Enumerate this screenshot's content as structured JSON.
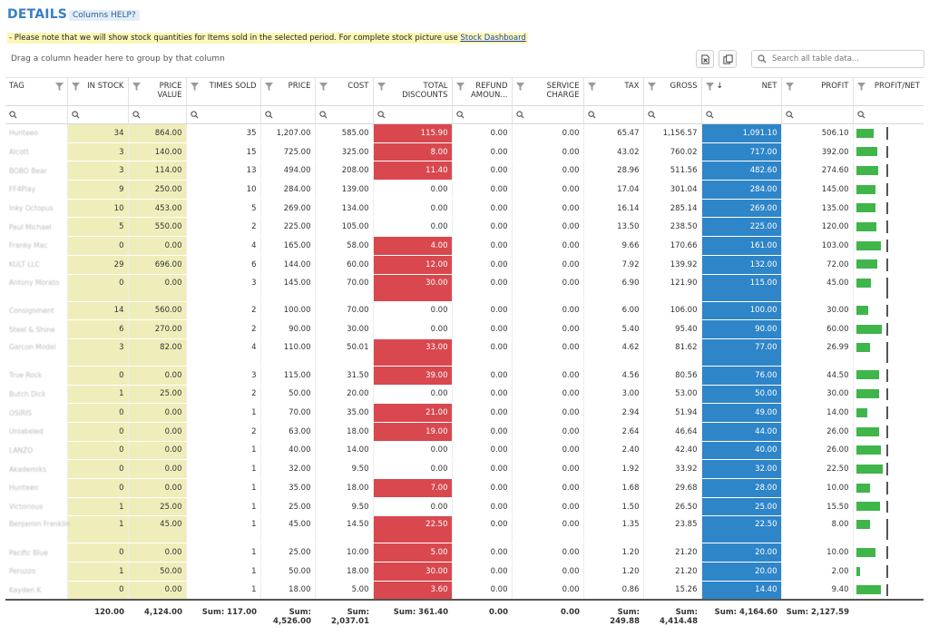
{
  "header": {
    "title": "DETAILS",
    "help_label": "Columns HELP?"
  },
  "notice": {
    "text": "- Please note that we will show stock quantities for Items sold in the selected period. For complete stock picture use ",
    "link": "Stock Dashboard"
  },
  "group_hint": "Drag a column header here to group by that column",
  "search": {
    "placeholder": "Search all table data..."
  },
  "toolbar": {
    "export_icon": "excel-export-icon",
    "copy_icon": "copy-columns-icon"
  },
  "colors": {
    "stock": "#efeebb",
    "discount": "#d8484e",
    "net": "#2e85c8",
    "profit_bar": "#3fb54a",
    "title": "#3a7fc4"
  },
  "columns": [
    "TAG",
    "IN STOCK",
    "PRICE VALUE",
    "TIMES SOLD",
    "PRICE",
    "COST",
    "TOTAL DISCOUNTS",
    "REFUND AMOUN...",
    "SERVICE CHARGE",
    "TAX",
    "GROSS",
    "NET",
    "PROFIT",
    "PROFIT/NET"
  ],
  "net_sort": "descending",
  "rows": [
    {
      "tag": "Hunteeo",
      "in_stock": "34",
      "price_value": "864.00",
      "times_sold": "35",
      "price": "1,207.00",
      "cost": "585.00",
      "total_discounts": "115.90",
      "refund": "0.00",
      "service_charge": "0.00",
      "tax": "65.47",
      "gross": "1,156.57",
      "net": "1,091.10",
      "profit": "506.10",
      "profit_net": 0.46
    },
    {
      "tag": "Alcott",
      "in_stock": "3",
      "price_value": "140.00",
      "times_sold": "15",
      "price": "725.00",
      "cost": "325.00",
      "total_discounts": "8.00",
      "refund": "0.00",
      "service_charge": "0.00",
      "tax": "43.02",
      "gross": "760.02",
      "net": "717.00",
      "profit": "392.00",
      "profit_net": 0.55
    },
    {
      "tag": "BOBO Bear",
      "in_stock": "3",
      "price_value": "114.00",
      "times_sold": "13",
      "price": "494.00",
      "cost": "208.00",
      "total_discounts": "11.40",
      "refund": "0.00",
      "service_charge": "0.00",
      "tax": "28.96",
      "gross": "511.56",
      "net": "482.60",
      "profit": "274.60",
      "profit_net": 0.57
    },
    {
      "tag": "FF4Play",
      "in_stock": "9",
      "price_value": "250.00",
      "times_sold": "10",
      "price": "284.00",
      "cost": "139.00",
      "total_discounts": "0.00",
      "refund": "0.00",
      "service_charge": "0.00",
      "tax": "17.04",
      "gross": "301.04",
      "net": "284.00",
      "profit": "145.00",
      "profit_net": 0.51
    },
    {
      "tag": "Inky Octopus",
      "in_stock": "10",
      "price_value": "453.00",
      "times_sold": "5",
      "price": "269.00",
      "cost": "134.00",
      "total_discounts": "0.00",
      "refund": "0.00",
      "service_charge": "0.00",
      "tax": "16.14",
      "gross": "285.14",
      "net": "269.00",
      "profit": "135.00",
      "profit_net": 0.5
    },
    {
      "tag": "Paul Michael",
      "in_stock": "5",
      "price_value": "550.00",
      "times_sold": "2",
      "price": "225.00",
      "cost": "105.00",
      "total_discounts": "0.00",
      "refund": "0.00",
      "service_charge": "0.00",
      "tax": "13.50",
      "gross": "238.50",
      "net": "225.00",
      "profit": "120.00",
      "profit_net": 0.53
    },
    {
      "tag": "Franky Mac",
      "in_stock": "0",
      "price_value": "0.00",
      "times_sold": "4",
      "price": "165.00",
      "cost": "58.00",
      "total_discounts": "4.00",
      "refund": "0.00",
      "service_charge": "0.00",
      "tax": "9.66",
      "gross": "170.66",
      "net": "161.00",
      "profit": "103.00",
      "profit_net": 0.64
    },
    {
      "tag": "KULT LLC",
      "in_stock": "29",
      "price_value": "696.00",
      "times_sold": "6",
      "price": "144.00",
      "cost": "60.00",
      "total_discounts": "12.00",
      "refund": "0.00",
      "service_charge": "0.00",
      "tax": "7.92",
      "gross": "139.92",
      "net": "132.00",
      "profit": "72.00",
      "profit_net": 0.55
    },
    {
      "tag": "Antony Morato",
      "in_stock": "0",
      "price_value": "0.00",
      "times_sold": "3",
      "price": "145.00",
      "cost": "70.00",
      "total_discounts": "30.00",
      "refund": "0.00",
      "service_charge": "0.00",
      "tax": "6.90",
      "gross": "121.90",
      "net": "115.00",
      "profit": "45.00",
      "profit_net": 0.39,
      "tall": true
    },
    {
      "tag": "Consignment",
      "in_stock": "14",
      "price_value": "560.00",
      "times_sold": "2",
      "price": "100.00",
      "cost": "70.00",
      "total_discounts": "0.00",
      "refund": "0.00",
      "service_charge": "0.00",
      "tax": "6.00",
      "gross": "106.00",
      "net": "100.00",
      "profit": "30.00",
      "profit_net": 0.3
    },
    {
      "tag": "Steel & Shine",
      "in_stock": "6",
      "price_value": "270.00",
      "times_sold": "2",
      "price": "90.00",
      "cost": "30.00",
      "total_discounts": "0.00",
      "refund": "0.00",
      "service_charge": "0.00",
      "tax": "5.40",
      "gross": "95.40",
      "net": "90.00",
      "profit": "60.00",
      "profit_net": 0.67
    },
    {
      "tag": "Garcon Model",
      "in_stock": "3",
      "price_value": "82.00",
      "times_sold": "4",
      "price": "110.00",
      "cost": "50.01",
      "total_discounts": "33.00",
      "refund": "0.00",
      "service_charge": "0.00",
      "tax": "4.62",
      "gross": "81.62",
      "net": "77.00",
      "profit": "26.99",
      "profit_net": 0.35,
      "tall": true
    },
    {
      "tag": "True Rock",
      "in_stock": "0",
      "price_value": "0.00",
      "times_sold": "3",
      "price": "115.00",
      "cost": "31.50",
      "total_discounts": "39.00",
      "refund": "0.00",
      "service_charge": "0.00",
      "tax": "4.56",
      "gross": "80.56",
      "net": "76.00",
      "profit": "44.50",
      "profit_net": 0.59
    },
    {
      "tag": "Butch Dick",
      "in_stock": "1",
      "price_value": "25.00",
      "times_sold": "2",
      "price": "50.00",
      "cost": "20.00",
      "total_discounts": "0.00",
      "refund": "0.00",
      "service_charge": "0.00",
      "tax": "3.00",
      "gross": "53.00",
      "net": "50.00",
      "profit": "30.00",
      "profit_net": 0.6
    },
    {
      "tag": "OSIRIS",
      "in_stock": "0",
      "price_value": "0.00",
      "times_sold": "1",
      "price": "70.00",
      "cost": "35.00",
      "total_discounts": "21.00",
      "refund": "0.00",
      "service_charge": "0.00",
      "tax": "2.94",
      "gross": "51.94",
      "net": "49.00",
      "profit": "14.00",
      "profit_net": 0.29
    },
    {
      "tag": "Unlabeled",
      "in_stock": "0",
      "price_value": "0.00",
      "times_sold": "2",
      "price": "63.00",
      "cost": "18.00",
      "total_discounts": "19.00",
      "refund": "0.00",
      "service_charge": "0.00",
      "tax": "2.64",
      "gross": "46.64",
      "net": "44.00",
      "profit": "26.00",
      "profit_net": 0.59
    },
    {
      "tag": "LANZO",
      "in_stock": "0",
      "price_value": "0.00",
      "times_sold": "1",
      "price": "40.00",
      "cost": "14.00",
      "total_discounts": "0.00",
      "refund": "0.00",
      "service_charge": "0.00",
      "tax": "2.40",
      "gross": "42.40",
      "net": "40.00",
      "profit": "26.00",
      "profit_net": 0.65
    },
    {
      "tag": "Akademiks",
      "in_stock": "0",
      "price_value": "0.00",
      "times_sold": "1",
      "price": "32.00",
      "cost": "9.50",
      "total_discounts": "0.00",
      "refund": "0.00",
      "service_charge": "0.00",
      "tax": "1.92",
      "gross": "33.92",
      "net": "32.00",
      "profit": "22.50",
      "profit_net": 0.7
    },
    {
      "tag": "Hunteeo",
      "in_stock": "0",
      "price_value": "0.00",
      "times_sold": "1",
      "price": "35.00",
      "cost": "18.00",
      "total_discounts": "7.00",
      "refund": "0.00",
      "service_charge": "0.00",
      "tax": "1.68",
      "gross": "29.68",
      "net": "28.00",
      "profit": "10.00",
      "profit_net": 0.36
    },
    {
      "tag": "Victorious",
      "in_stock": "1",
      "price_value": "25.00",
      "times_sold": "1",
      "price": "25.00",
      "cost": "9.50",
      "total_discounts": "0.00",
      "refund": "0.00",
      "service_charge": "0.00",
      "tax": "1.50",
      "gross": "26.50",
      "net": "25.00",
      "profit": "15.50",
      "profit_net": 0.62
    },
    {
      "tag": "Benjamin Franklin",
      "in_stock": "1",
      "price_value": "45.00",
      "times_sold": "1",
      "price": "45.00",
      "cost": "14.50",
      "total_discounts": "22.50",
      "refund": "0.00",
      "service_charge": "0.00",
      "tax": "1.35",
      "gross": "23.85",
      "net": "22.50",
      "profit": "8.00",
      "profit_net": 0.36,
      "tall": true
    },
    {
      "tag": "Pacific Blue",
      "in_stock": "0",
      "price_value": "0.00",
      "times_sold": "1",
      "price": "25.00",
      "cost": "10.00",
      "total_discounts": "5.00",
      "refund": "0.00",
      "service_charge": "0.00",
      "tax": "1.20",
      "gross": "21.20",
      "net": "20.00",
      "profit": "10.00",
      "profit_net": 0.5
    },
    {
      "tag": "Peruzzo",
      "in_stock": "1",
      "price_value": "50.00",
      "times_sold": "1",
      "price": "50.00",
      "cost": "18.00",
      "total_discounts": "30.00",
      "refund": "0.00",
      "service_charge": "0.00",
      "tax": "1.20",
      "gross": "21.20",
      "net": "20.00",
      "profit": "2.00",
      "profit_net": 0.1
    },
    {
      "tag": "Kayden K",
      "in_stock": "0",
      "price_value": "0.00",
      "times_sold": "1",
      "price": "18.00",
      "cost": "5.00",
      "total_discounts": "3.60",
      "refund": "0.00",
      "service_charge": "0.00",
      "tax": "0.86",
      "gross": "15.26",
      "net": "14.40",
      "profit": "9.40",
      "profit_net": 0.65
    }
  ],
  "sums": {
    "tag": "",
    "in_stock": "120.00",
    "price_value": "4,124.00",
    "times_sold": "Sum: 117.00",
    "price": "Sum: 4,526.00",
    "cost": "Sum: 2,037.01",
    "total_discounts": "Sum: 361.40",
    "refund": "0.00",
    "service_charge": "0.00",
    "tax": "Sum: 249.88",
    "gross": "Sum: 4,414.48",
    "net": "Sum: 4,164.60",
    "profit": "Sum: 2,127.59",
    "profit_net": ""
  }
}
